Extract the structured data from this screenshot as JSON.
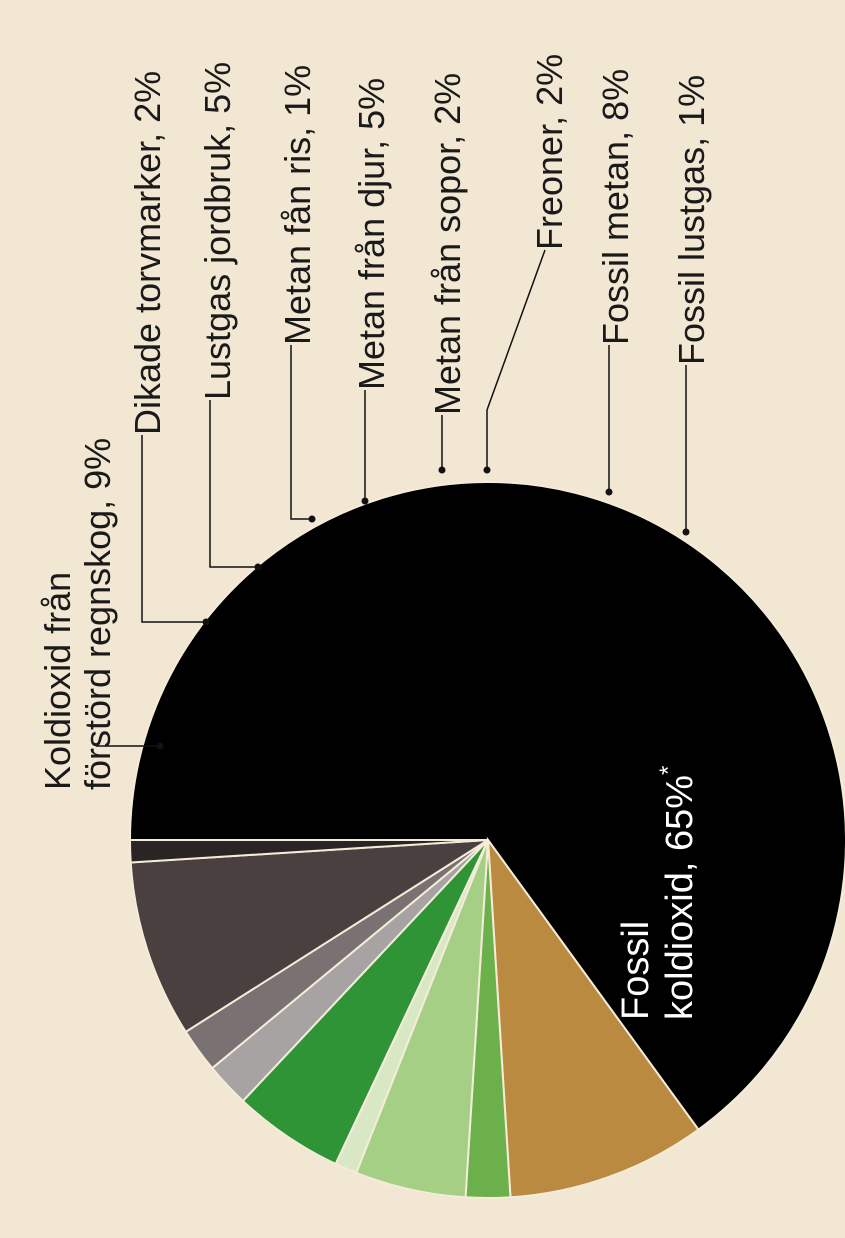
{
  "chart_data": {
    "type": "pie",
    "orientation": "rotated 90° counter-clockwise (labels read bottom-to-top)",
    "unit": "%",
    "slices": [
      {
        "label_lines": [
          "Fossil",
          "koldioxid, 65%"
        ],
        "suffix": "*",
        "value": 65,
        "color": "#000000"
      },
      {
        "label_lines": [
          "Koldioxid från",
          "förstörd regnskog, 9%"
        ],
        "value": 9,
        "color": "#b98a3f"
      },
      {
        "label_lines": [
          "Dikade torvmarker, 2%"
        ],
        "value": 2,
        "color": "#6cb04b"
      },
      {
        "label_lines": [
          "Lustgas jordbruk, 5%"
        ],
        "value": 5,
        "color": "#a6cf86"
      },
      {
        "label_lines": [
          "Metan fån ris, 1%"
        ],
        "value": 1,
        "color": "#d9e8c4"
      },
      {
        "label_lines": [
          "Metan från djur, 5%"
        ],
        "value": 5,
        "color": "#2f9436"
      },
      {
        "label_lines": [
          "Metan från sopor, 2%"
        ],
        "value": 2,
        "color": "#a8a3a3"
      },
      {
        "label_lines": [
          "Freoner, 2%"
        ],
        "value": 2,
        "color": "#7a7272"
      },
      {
        "label_lines": [
          "Fossil metan, 8%"
        ],
        "value": 8,
        "color": "#4a4040"
      },
      {
        "label_lines": [
          "Fossil lustgas, 1%"
        ],
        "value": 1,
        "color": "#2a2424"
      }
    ]
  }
}
